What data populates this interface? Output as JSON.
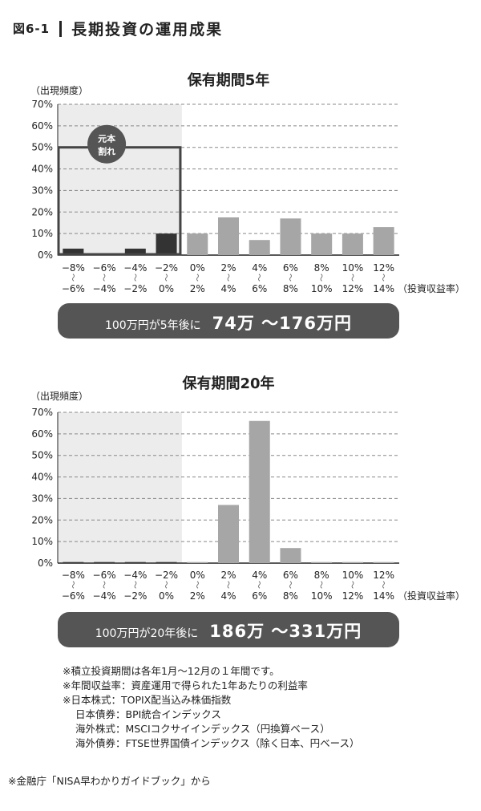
{
  "figure": {
    "number": "図6-1",
    "title": "長期投資の運用成果"
  },
  "axis": {
    "ylabel": "（出現頻度）",
    "xlabel": "（投資収益率）",
    "yticks": [
      "0%",
      "10%",
      "20%",
      "30%",
      "40%",
      "50%",
      "60%",
      "70%"
    ],
    "categories": [
      {
        "top": "−8%",
        "bottom": "−6%"
      },
      {
        "top": "−6%",
        "bottom": "−4%"
      },
      {
        "top": "−4%",
        "bottom": "−2%"
      },
      {
        "top": "−2%",
        "bottom": "0%"
      },
      {
        "top": "0%",
        "bottom": "2%"
      },
      {
        "top": "2%",
        "bottom": "4%"
      },
      {
        "top": "4%",
        "bottom": "6%"
      },
      {
        "top": "6%",
        "bottom": "8%"
      },
      {
        "top": "8%",
        "bottom": "10%"
      },
      {
        "top": "10%",
        "bottom": "12%"
      },
      {
        "top": "12%",
        "bottom": "14%"
      }
    ],
    "tilde": "〜"
  },
  "chart_data": [
    {
      "type": "bar",
      "title": "保有期間5年",
      "ylabel": "（出現頻度）",
      "xlabel": "（投資収益率）",
      "ylim": [
        0,
        70
      ],
      "categories": [
        "−8%〜−6%",
        "−6%〜−4%",
        "−4%〜−2%",
        "−2%〜0%",
        "0%〜2%",
        "2%〜4%",
        "4%〜6%",
        "6%〜8%",
        "8%〜10%",
        "10%〜12%",
        "12%〜14%"
      ],
      "values": [
        3,
        0.5,
        3,
        10,
        10,
        17.5,
        7,
        17,
        10,
        10,
        13
      ],
      "loss_region_label_line1": "元本",
      "loss_region_label_line2": "割れ",
      "loss_region_bar_color": "#333333",
      "gain_region_bar_color": "#a6a6a6",
      "summary_prefix": "100万円が5年後に",
      "summary_range": "74万 〜176万円"
    },
    {
      "type": "bar",
      "title": "保有期間20年",
      "ylabel": "（出現頻度）",
      "xlabel": "（投資収益率）",
      "ylim": [
        0,
        70
      ],
      "categories": [
        "−8%〜−6%",
        "−6%〜−4%",
        "−4%〜−2%",
        "−2%〜0%",
        "0%〜2%",
        "2%〜4%",
        "4%〜6%",
        "6%〜8%",
        "8%〜10%",
        "10%〜12%",
        "12%〜14%"
      ],
      "values": [
        0.5,
        0.5,
        0.5,
        0.5,
        0.5,
        27,
        66,
        7,
        0.5,
        0.5,
        0.5
      ],
      "loss_region_bar_color": "#333333",
      "gain_region_bar_color": "#a6a6a6",
      "summary_prefix": "100万円が20年後に",
      "summary_range": "186万 〜331万円"
    }
  ],
  "notes": [
    "※積立投資期間は各年1月〜12月の１年間です。",
    "※年間収益率：資産運用で得られた1年あたりの利益率",
    "※日本株式：TOPIX配当込み株価指数",
    "日本債券：BPI統合インデックス",
    "海外株式：MSCIコクサイインデックス（円換算ベース）",
    "海外債券：FTSE世界国債インデックス（除く日本、円ベース）"
  ],
  "source": "※金融庁「NISA早わかりガイドブック」から"
}
